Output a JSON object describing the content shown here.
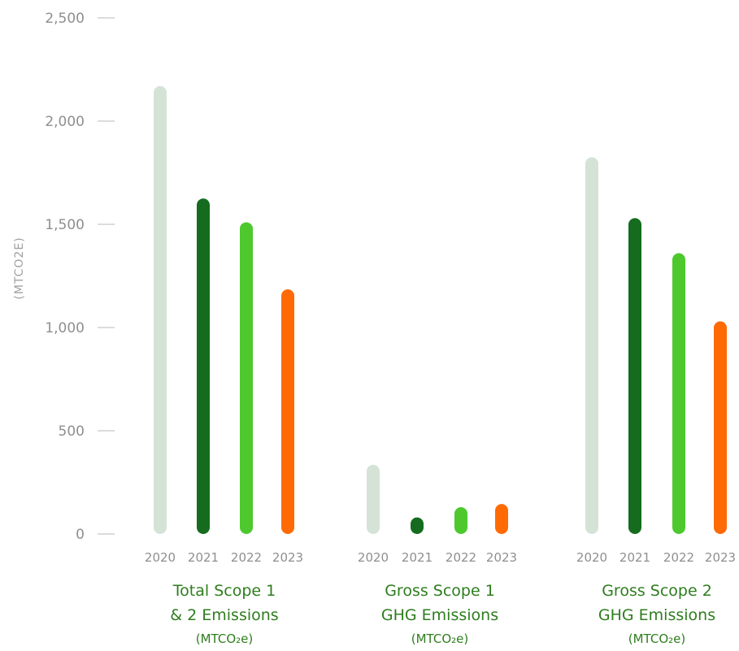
{
  "chart_data": {
    "type": "bar",
    "ylabel": "(MTCO2E)",
    "ylim": [
      0,
      2500
    ],
    "yticks": [
      "0",
      "500",
      "1,000",
      "1,500",
      "2,000",
      "2,500"
    ],
    "ytick_values": [
      0,
      500,
      1000,
      1500,
      2000,
      2500
    ],
    "grid": false,
    "series_colors": {
      "2020": "#d5e3d6",
      "2021": "#156c1e",
      "2022": "#4dc92e",
      "2023": "#ff6a05"
    },
    "groups": [
      {
        "title_lines": [
          "Total Scope 1",
          "& 2 Emissions"
        ],
        "unit": "(MTCO₂e)",
        "years": [
          "2020",
          "2021",
          "2022",
          "2023"
        ],
        "values": [
          2170,
          1625,
          1510,
          1185
        ]
      },
      {
        "title_lines": [
          "Gross Scope 1",
          "GHG Emissions"
        ],
        "unit": "(MTCO₂e)",
        "years": [
          "2020",
          "2021",
          "2022",
          "2023"
        ],
        "values": [
          335,
          80,
          130,
          145
        ]
      },
      {
        "title_lines": [
          "Gross Scope 2",
          "GHG Emissions"
        ],
        "unit": "(MTCO₂e)",
        "years": [
          "2020",
          "2021",
          "2022",
          "2023"
        ],
        "values": [
          1825,
          1530,
          1360,
          1030
        ]
      }
    ]
  }
}
